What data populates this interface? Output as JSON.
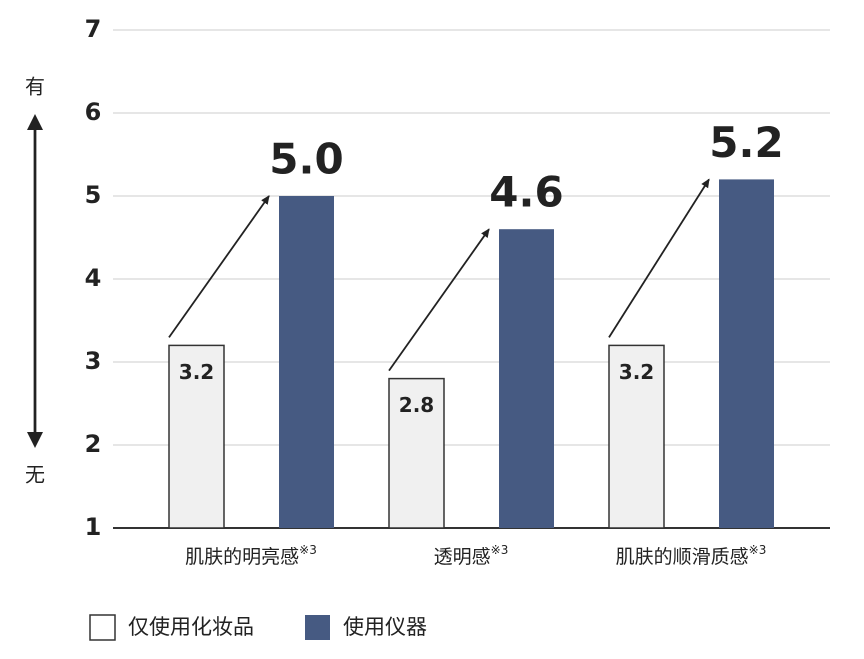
{
  "chart_data": {
    "type": "bar",
    "y_axis_top_label": "有",
    "y_axis_bottom_label": "无",
    "categories": [
      "肌肤的明亮感",
      "透明感",
      "肌肤的顺滑质感"
    ],
    "category_footnote": "※3",
    "series": [
      {
        "name": "仅使用化妆品",
        "color": "#f0f0f0",
        "values": [
          3.2,
          2.8,
          3.2
        ]
      },
      {
        "name": "使用仪器",
        "color": "#465a82",
        "values": [
          5.0,
          4.6,
          5.2
        ],
        "value_labels": [
          "5.0",
          "4.6",
          "5.2"
        ]
      }
    ],
    "ylim": [
      1,
      7
    ],
    "yticks": [
      1,
      2,
      3,
      4,
      5,
      6,
      7
    ],
    "grid": true
  }
}
